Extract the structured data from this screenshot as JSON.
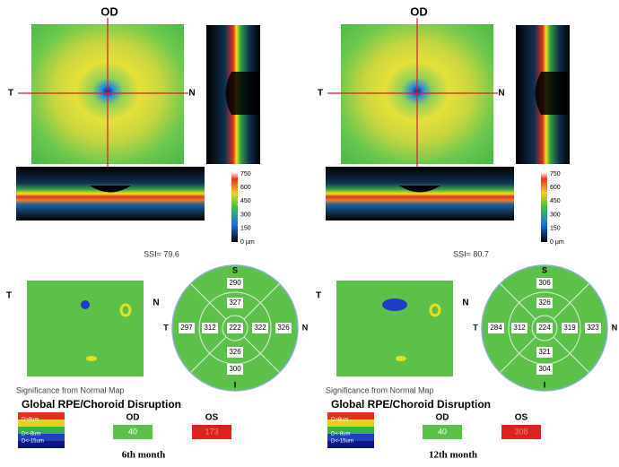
{
  "panels": [
    {
      "eye": "OD",
      "map_temporal": "T",
      "map_nasal": "N",
      "scale_labels": [
        "750",
        "600",
        "450",
        "300",
        "150",
        "0 µm"
      ],
      "ssi": "SSI= 79.6",
      "sig_temporal": "T",
      "sig_nasal": "N",
      "circle": {
        "superior": "S",
        "inferior": "I",
        "temporal": "T",
        "nasal": "N",
        "values": [
          "290",
          "327",
          "297",
          "312",
          "222",
          "322",
          "326",
          "326",
          "300"
        ]
      },
      "sig_title": "Significance from Normal Map",
      "disruption_title": "Global RPE/Choroid Disruption",
      "legend": [
        "D>8um",
        "D<-8um",
        "D<-15um"
      ],
      "od_label": "OD",
      "od_value": "40",
      "os_label": "OS",
      "os_value": "173",
      "caption": "6th month"
    },
    {
      "eye": "OD",
      "map_temporal": "T",
      "map_nasal": "N",
      "scale_labels": [
        "750",
        "600",
        "450",
        "300",
        "150",
        "0 µm"
      ],
      "ssi": "SSI= 80.7",
      "sig_temporal": "T",
      "sig_nasal": "N",
      "circle": {
        "superior": "S",
        "inferior": "I",
        "temporal": "T",
        "nasal": "N",
        "values": [
          "306",
          "326",
          "284",
          "312",
          "224",
          "319",
          "323",
          "321",
          "304"
        ]
      },
      "sig_title": "Significance from Normal Map",
      "disruption_title": "Global RPE/Choroid Disruption",
      "legend": [
        "D>8um",
        "D<-8um",
        "D<-15um"
      ],
      "od_label": "OD",
      "od_value": "40",
      "os_label": "OS",
      "os_value": "308",
      "caption": "12th month"
    }
  ]
}
